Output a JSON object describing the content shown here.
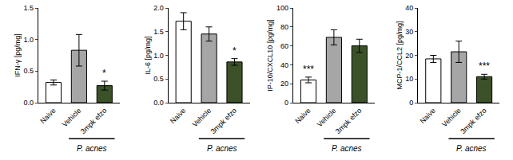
{
  "chart_data": [
    {
      "type": "bar",
      "y_label": "IFN-γ [pg/mg]",
      "categories": [
        "Naive",
        "Vehicle",
        "3mpk efzo"
      ],
      "values": [
        0.32,
        0.83,
        0.27
      ],
      "error": [
        0.04,
        0.25,
        0.07
      ],
      "colors": [
        "#ffffff",
        "#a6a6a6",
        "#3b5229"
      ],
      "ylim": [
        0,
        1.5
      ],
      "yticks": [
        {
          "value": 0,
          "label": "0.0"
        },
        0.5,
        {
          "value": 1,
          "label": "1.0"
        },
        1.5
      ],
      "annotations": [
        {
          "text": "*",
          "category": "3mpk efzo"
        }
      ],
      "group_label": {
        "text": "P. acnes",
        "categories": [
          "Vehicle",
          "3mpk efzo"
        ]
      }
    },
    {
      "type": "bar",
      "y_label": "IL-6 [pg/mg]",
      "categories": [
        "Naive",
        "Vehicle",
        "3mpk efzo"
      ],
      "values": [
        1.72,
        1.45,
        0.86
      ],
      "error": [
        0.18,
        0.15,
        0.07
      ],
      "colors": [
        "#ffffff",
        "#a6a6a6",
        "#3b5229"
      ],
      "ylim": [
        0,
        2
      ],
      "yticks": [
        {
          "value": 0,
          "label": "0.0"
        },
        0.5,
        {
          "value": 1,
          "label": "1.0"
        },
        1.5,
        {
          "value": 2,
          "label": "2.0"
        }
      ],
      "annotations": [
        {
          "text": "*",
          "category": "3mpk efzo"
        }
      ],
      "group_label": {
        "text": "P. acnes",
        "categories": [
          "Vehicle",
          "3mpk efzo"
        ]
      }
    },
    {
      "type": "bar",
      "y_label": "IP-10/CXCL10 [pg/mg]",
      "categories": [
        "Naive",
        "Vehicle",
        "3mpk efzo"
      ],
      "values": [
        24,
        69,
        60
      ],
      "error": [
        3,
        8,
        7
      ],
      "colors": [
        "#ffffff",
        "#a6a6a6",
        "#3b5229"
      ],
      "ylim": [
        0,
        100
      ],
      "yticks": [
        0,
        20,
        40,
        60,
        80,
        100
      ],
      "annotations": [
        {
          "text": "***",
          "category": "Naive"
        }
      ],
      "group_label": {
        "text": "P. acnes",
        "categories": [
          "Vehicle",
          "3mpk efzo"
        ]
      }
    },
    {
      "type": "bar",
      "y_label": "MCP-1/CCL2 [pg/mg]",
      "categories": [
        "Naive",
        "Vehicle",
        "3mpk efzo"
      ],
      "values": [
        18.5,
        21.5,
        11
      ],
      "error": [
        1.5,
        4.5,
        1
      ],
      "colors": [
        "#ffffff",
        "#a6a6a6",
        "#3b5229"
      ],
      "ylim": [
        0,
        40
      ],
      "yticks": [
        0,
        10,
        20,
        30,
        40
      ],
      "annotations": [
        {
          "text": "***",
          "category": "3mpk efzo"
        }
      ],
      "group_label": {
        "text": "P. acnes",
        "categories": [
          "Vehicle",
          "3mpk efzo"
        ]
      }
    }
  ]
}
